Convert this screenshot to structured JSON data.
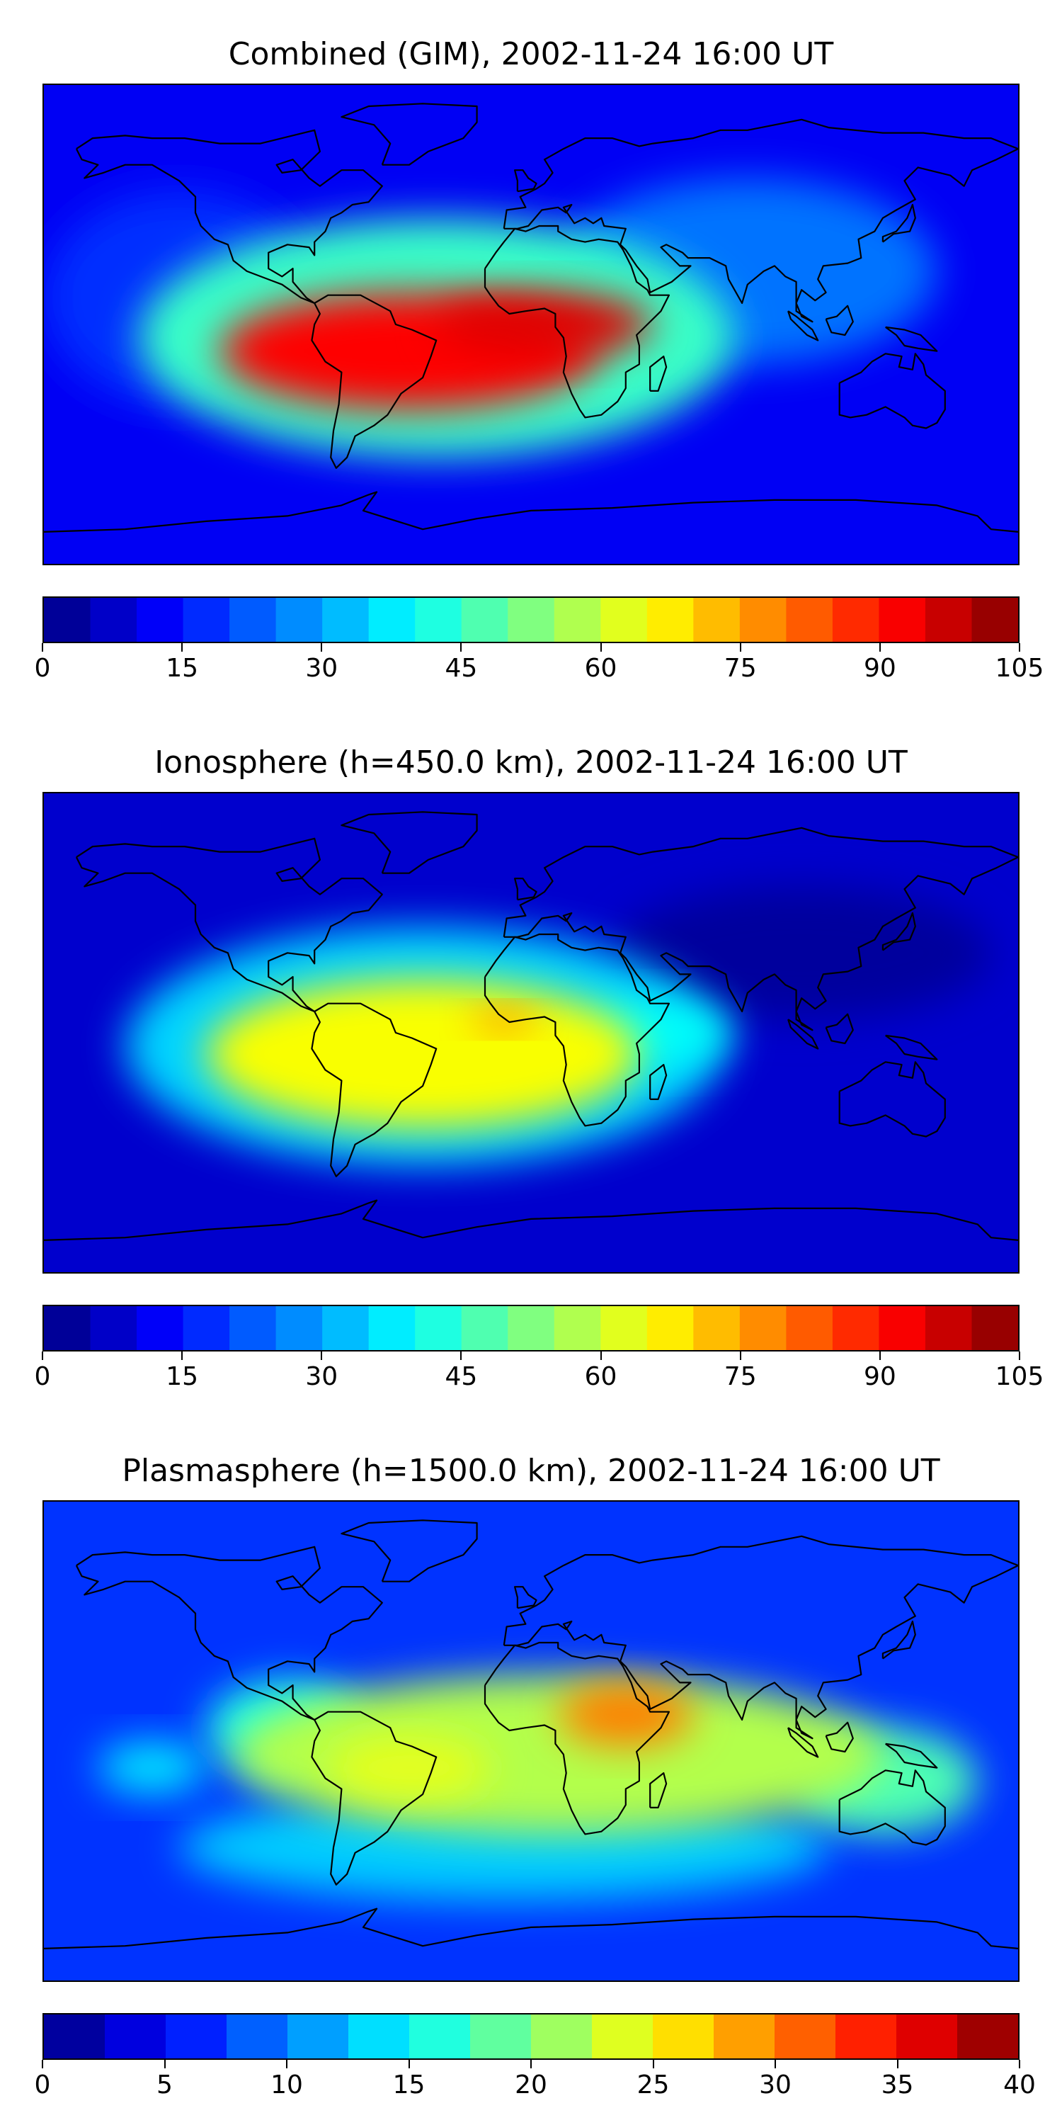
{
  "panels": [
    {
      "title": "Combined (GIM), 2002-11-24 16:00 UT",
      "colorbar": {
        "min": 0,
        "max": 105,
        "levels": 21,
        "ticks": [
          0,
          15,
          30,
          45,
          60,
          75,
          90,
          105
        ]
      }
    },
    {
      "title": "Ionosphere  (h=450.0 km), 2002-11-24 16:00 UT",
      "colorbar": {
        "min": 0,
        "max": 105,
        "levels": 21,
        "ticks": [
          0,
          15,
          30,
          45,
          60,
          75,
          90,
          105
        ]
      }
    },
    {
      "title": "Plasmasphere (h=1500.0 km), 2002-11-24 16:00 UT",
      "colorbar": {
        "min": 0,
        "max": 40,
        "levels": 16,
        "ticks": [
          0,
          5,
          10,
          15,
          20,
          25,
          30,
          35,
          40
        ]
      }
    }
  ],
  "chart_data": [
    {
      "type": "heatmap",
      "title": "Combined (GIM), 2002-11-24 16:00 UT",
      "xlim": [
        -180,
        180
      ],
      "ylim": [
        -90,
        90
      ],
      "colormap": "jet",
      "colorbar_ticks": [
        0,
        15,
        30,
        45,
        60,
        75,
        90,
        105
      ],
      "background_value": 12,
      "features": [
        {
          "lon": -45,
          "lat": -10,
          "value": 92,
          "rx": 70,
          "ry": 22
        },
        {
          "lon": 5,
          "lat": 0,
          "value": 95,
          "rx": 40,
          "ry": 12
        },
        {
          "lon": -35,
          "lat": -5,
          "value": 45,
          "rx": 110,
          "ry": 45
        },
        {
          "lon": 80,
          "lat": 20,
          "value": 25,
          "rx": 70,
          "ry": 35
        },
        {
          "lon": -130,
          "lat": 10,
          "value": 18,
          "rx": 50,
          "ry": 40
        }
      ]
    },
    {
      "type": "heatmap",
      "title": "Ionosphere  (h=450.0 km), 2002-11-24 16:00 UT",
      "xlim": [
        -180,
        180
      ],
      "ylim": [
        -90,
        90
      ],
      "colormap": "jet",
      "colorbar_ticks": [
        0,
        15,
        30,
        45,
        60,
        75,
        90,
        105
      ],
      "background_value": 8,
      "features": [
        {
          "lon": -40,
          "lat": -8,
          "value": 65,
          "rx": 80,
          "ry": 28
        },
        {
          "lon": -10,
          "lat": 5,
          "value": 78,
          "rx": 12,
          "ry": 4
        },
        {
          "lon": -40,
          "lat": -5,
          "value": 35,
          "rx": 110,
          "ry": 45
        },
        {
          "lon": 45,
          "lat": 0,
          "value": 40,
          "rx": 30,
          "ry": 12
        },
        {
          "lon": 100,
          "lat": 30,
          "value": 3,
          "rx": 70,
          "ry": 25
        }
      ]
    },
    {
      "type": "heatmap",
      "title": "Plasmasphere (h=1500.0 km), 2002-11-24 16:00 UT",
      "xlim": [
        -180,
        180
      ],
      "ylim": [
        -90,
        90
      ],
      "colormap": "jet",
      "colorbar_ticks": [
        0,
        5,
        10,
        15,
        20,
        25,
        30,
        35,
        40
      ],
      "background_value": 7,
      "features": [
        {
          "lon": 35,
          "lat": 10,
          "value": 30,
          "rx": 25,
          "ry": 12
        },
        {
          "lon": 10,
          "lat": -5,
          "value": 22,
          "rx": 120,
          "ry": 30
        },
        {
          "lon": -45,
          "lat": -10,
          "value": 24,
          "rx": 30,
          "ry": 12
        },
        {
          "lon": -90,
          "lat": 5,
          "value": 16,
          "rx": 30,
          "ry": 18
        },
        {
          "lon": -140,
          "lat": -10,
          "value": 14,
          "rx": 20,
          "ry": 10
        },
        {
          "lon": 130,
          "lat": -15,
          "value": 18,
          "rx": 35,
          "ry": 20
        },
        {
          "lon": -10,
          "lat": -40,
          "value": 13,
          "rx": 120,
          "ry": 20
        }
      ]
    }
  ]
}
